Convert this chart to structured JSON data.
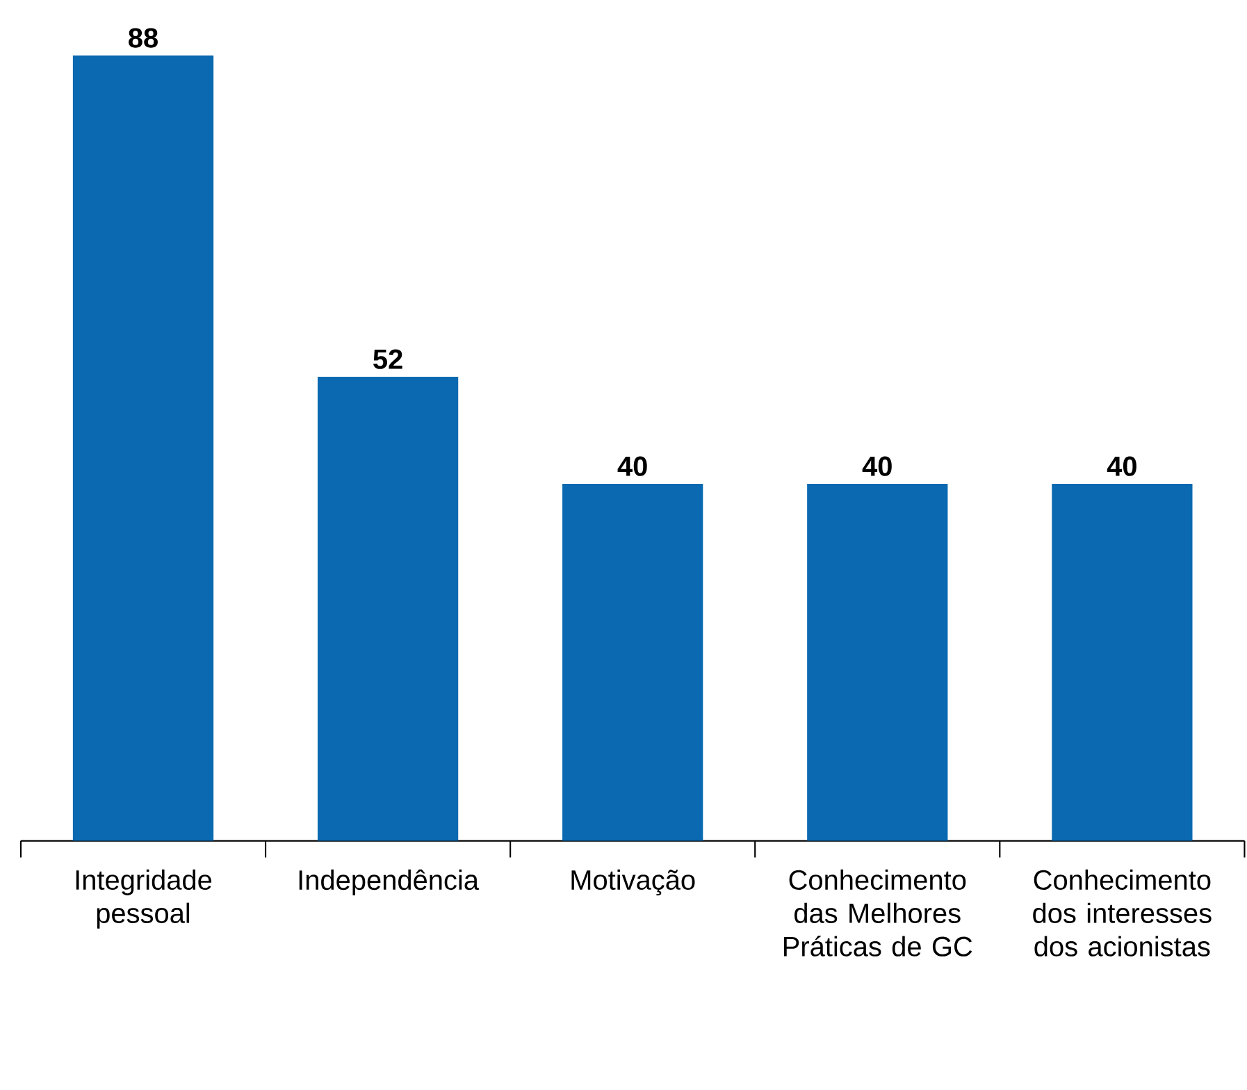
{
  "chart_data": {
    "type": "bar",
    "categories": [
      "Integridade pessoal",
      "Independência",
      "Motivação",
      "Conhecimento das Melhores Práticas de GC",
      "Conhecimento dos interesses dos acionistas"
    ],
    "values": [
      88,
      52,
      40,
      40,
      40
    ],
    "color": "#0a69b0",
    "data_labels": true
  }
}
